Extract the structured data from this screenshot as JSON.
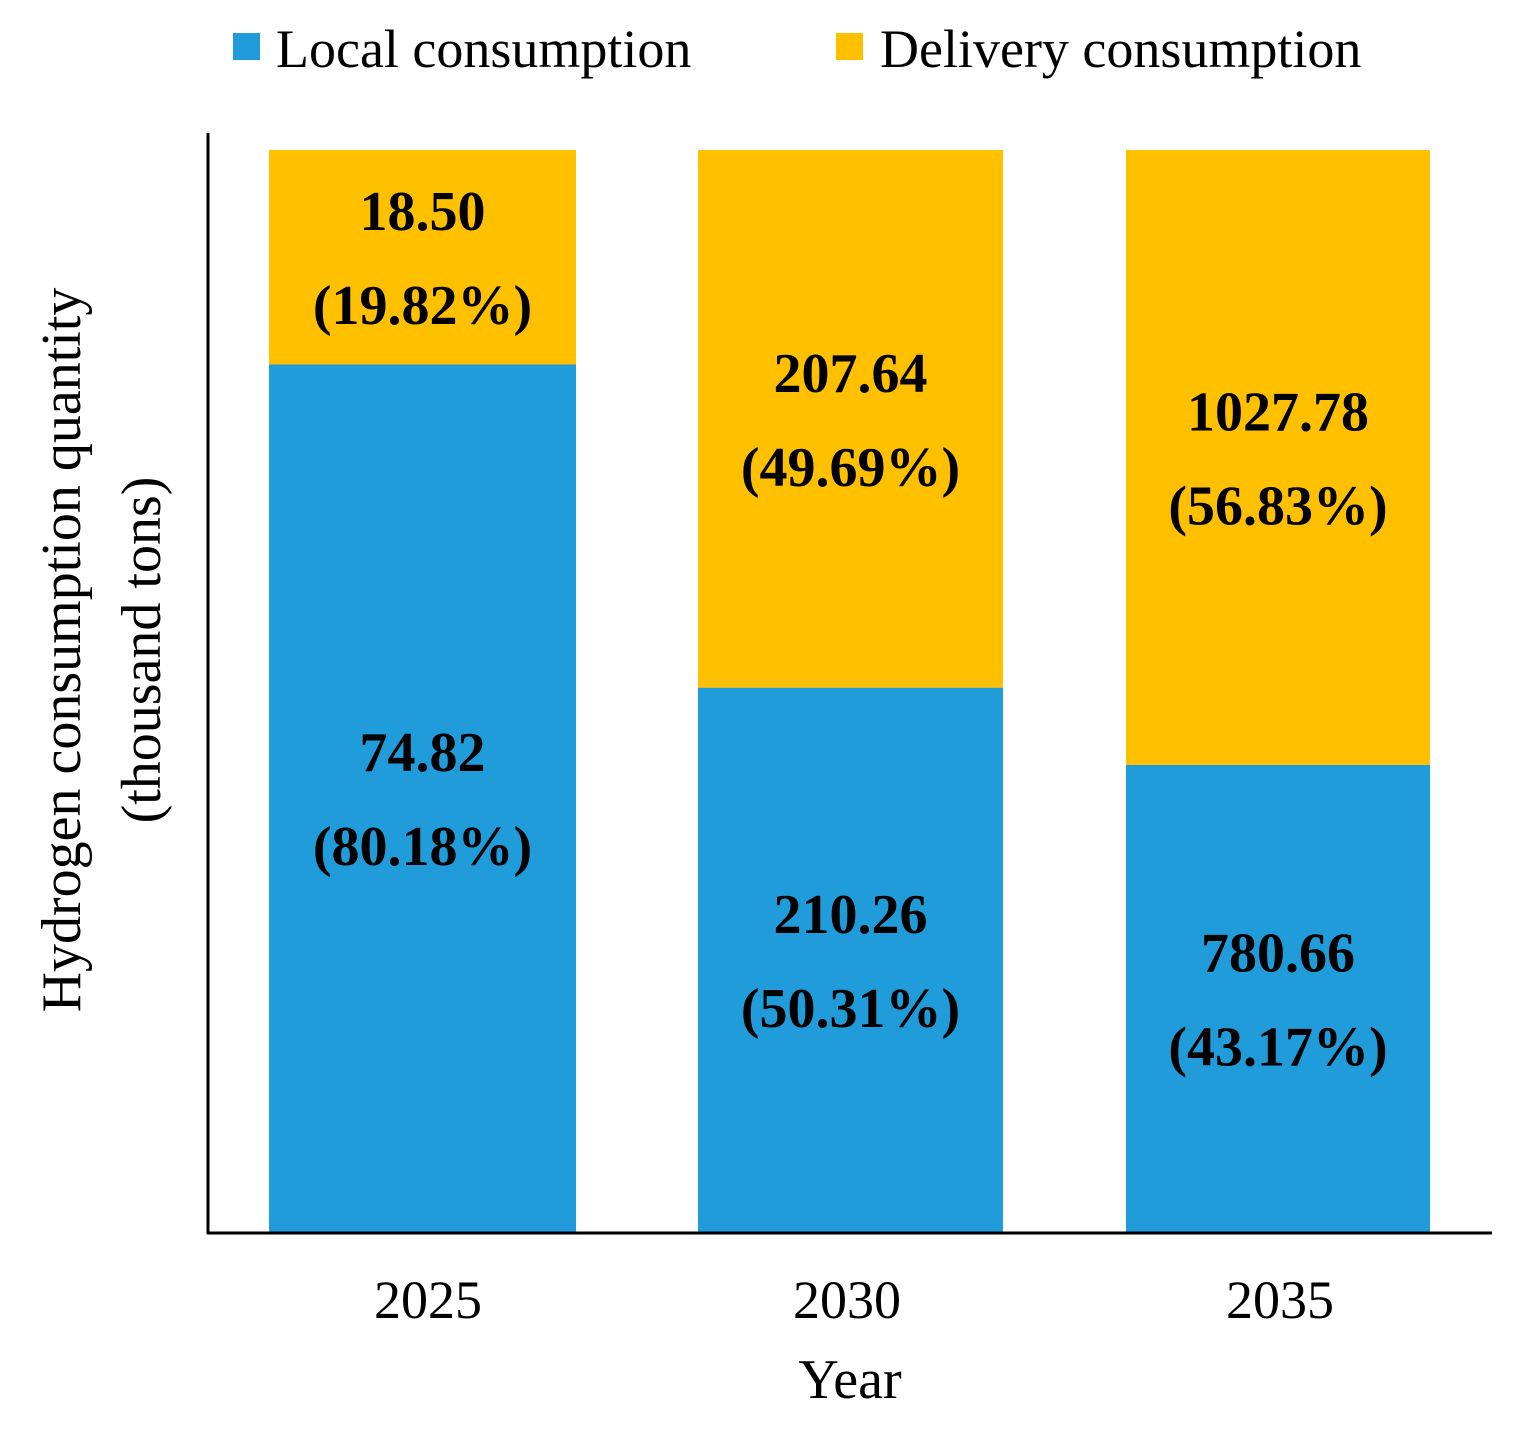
{
  "chart_data": {
    "type": "bar",
    "stacked": "percent",
    "title": "",
    "xlabel": "Year",
    "ylabel": "Hydrogen consumption quantity",
    "ylabel_unit": "(thousand tons)",
    "categories": [
      "2025",
      "2030",
      "2035"
    ],
    "series": [
      {
        "name": "Local consumption",
        "color": "#1F9CD9",
        "values": [
          74.82,
          210.26,
          780.66
        ],
        "percents": [
          80.18,
          50.31,
          43.17
        ],
        "labels": [
          "74.82",
          "210.26",
          "780.66"
        ],
        "percent_labels": [
          "(80.18%)",
          "(50.31%)",
          "(43.17%)"
        ]
      },
      {
        "name": "Delivery consumption",
        "color": "#FFC000",
        "values": [
          18.5,
          207.64,
          1027.78
        ],
        "percents": [
          19.82,
          49.69,
          56.83
        ],
        "labels": [
          "18.50",
          "207.64",
          "1027.78"
        ],
        "percent_labels": [
          "(19.82%)",
          "(49.69%)",
          "(56.83%)"
        ]
      }
    ],
    "ylim": [
      0,
      100
    ],
    "grid": false,
    "legend": "top"
  }
}
